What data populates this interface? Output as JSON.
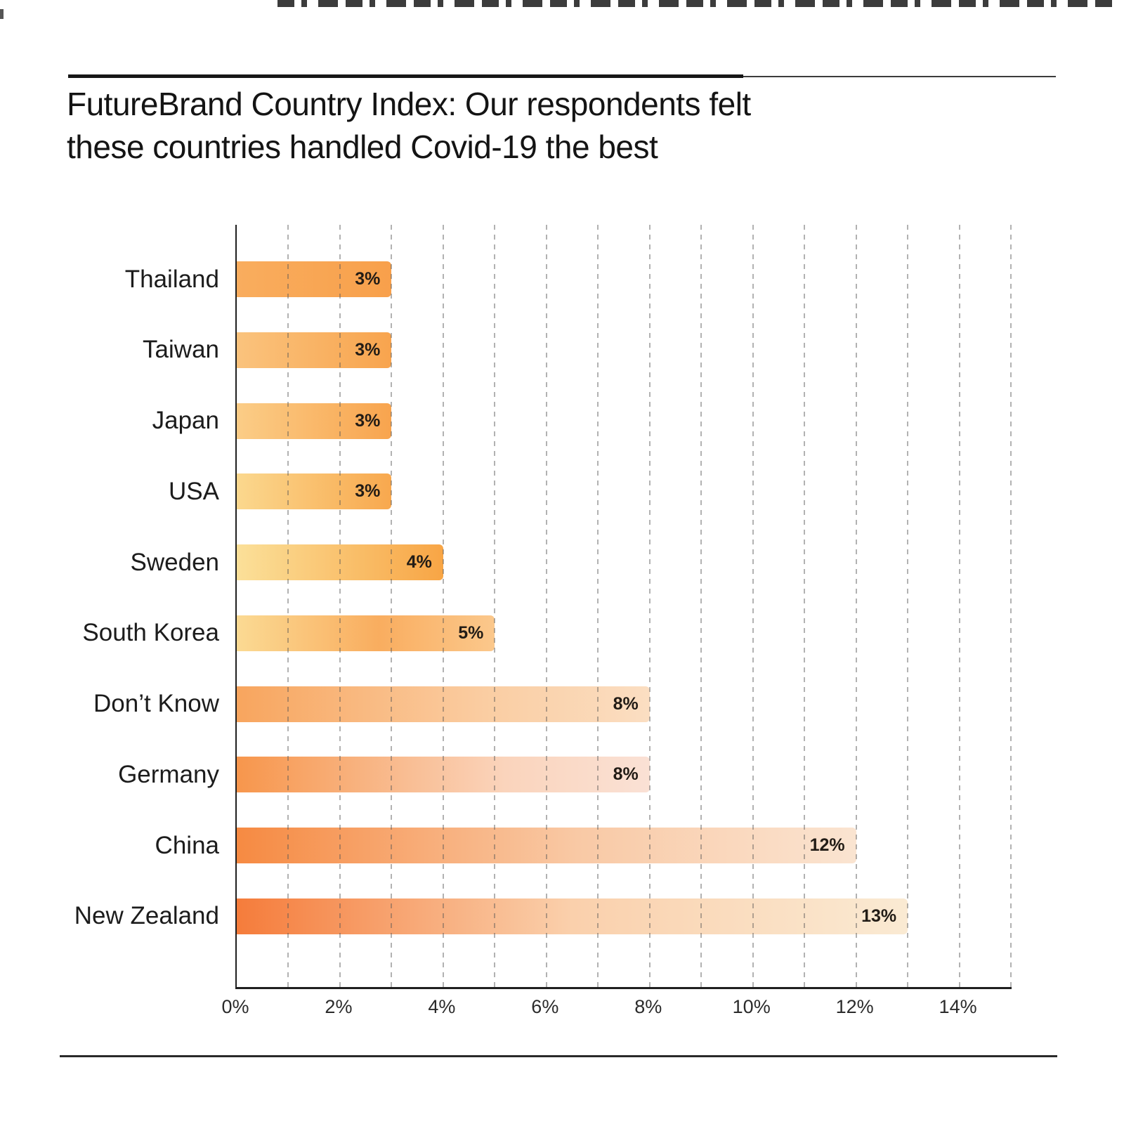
{
  "page": {
    "title_lines": [
      "FutureBrand Country Index: Our respondents felt",
      "these countries handled Covid-19 the best"
    ]
  },
  "chart_data": {
    "type": "bar",
    "orientation": "horizontal",
    "title": "FutureBrand Country Index: Our respondents felt these countries handled Covid-19 the best",
    "categories": [
      "Thailand",
      "Taiwan",
      "Japan",
      "USA",
      "Sweden",
      "South Korea",
      "Don’t Know",
      "Germany",
      "China",
      "New Zealand"
    ],
    "values": [
      3,
      3,
      3,
      3,
      4,
      5,
      8,
      8,
      12,
      13
    ],
    "value_labels": [
      "3%",
      "3%",
      "3%",
      "3%",
      "4%",
      "5%",
      "8%",
      "8%",
      "12%",
      "13%"
    ],
    "xlabel": "",
    "ylabel": "",
    "xlim": [
      0,
      15
    ],
    "x_ticks": [
      "0%",
      "2%",
      "4%",
      "6%",
      "8%",
      "10%",
      "12%",
      "14%"
    ],
    "x_tick_values": [
      0,
      2,
      4,
      6,
      8,
      10,
      12,
      14
    ],
    "gridlines": "vertical dashed at every 1%",
    "legend": "none",
    "bar_gradients": [
      [
        "#F9AD5E 0%",
        "#F8A04B 100%"
      ],
      [
        "#FAC37D 0%",
        "#F8A44E 100%"
      ],
      [
        "#FBCD87 0%",
        "#F8A44E 100%"
      ],
      [
        "#FBD88E 0%",
        "#F8A84E 100%"
      ],
      [
        "#FBE099 0%",
        "#F8A545 100%"
      ],
      [
        "#FBDA93 0%",
        "#F9AD5F 55%",
        "#FBC88C 100%"
      ],
      [
        "#F8A55E 0%",
        "#FACDA2 60%",
        "#FBDEC2 100%"
      ],
      [
        "#F7964C 0%",
        "#FAD4BC 65%",
        "#FAE1D5 100%"
      ],
      [
        "#F68A42 0%",
        "#F9C9A5 55%",
        "#FAE4D1 100%"
      ],
      [
        "#F57C3B 0%",
        "#FAD0AC 50%",
        "#FAEAD3 100%"
      ]
    ]
  },
  "colors": {
    "background": "#FFFFFF",
    "axis": "#1F1F1F",
    "title_text": "#141414",
    "category_text": "#1C1C1C",
    "value_text": "#221C16",
    "tick_text": "#2B2B2B",
    "gridline": "#8A8A8A",
    "accent_orange_dark": "#F57C3B",
    "accent_orange_light": "#FBE099"
  }
}
